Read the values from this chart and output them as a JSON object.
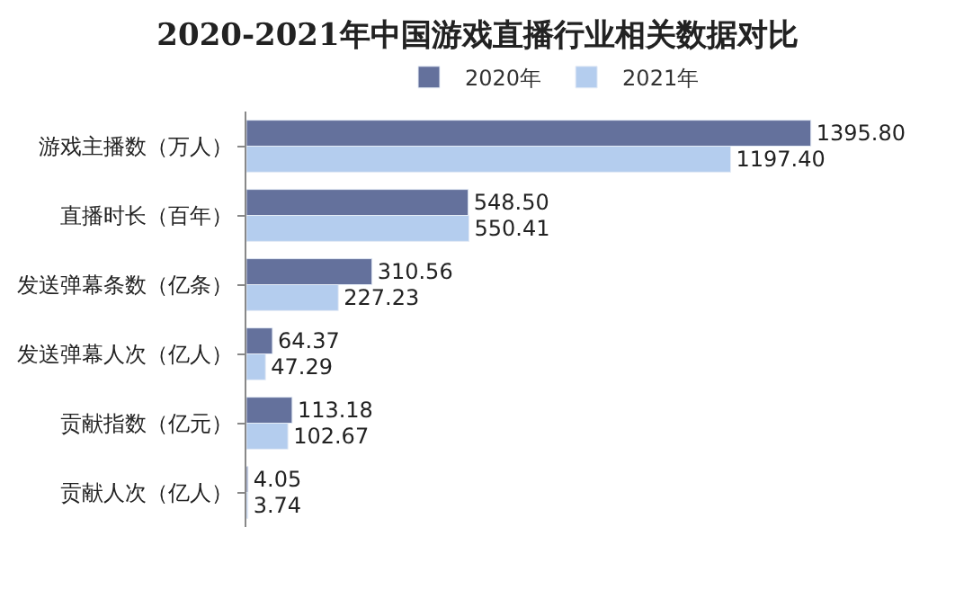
{
  "chart_data": {
    "type": "bar",
    "orientation": "horizontal",
    "title": "2020-2021年中国游戏直播行业相关数据对比",
    "categories": [
      "游戏主播数（万人）",
      "直播时长（百年）",
      "发送弹幕条数（亿条）",
      "发送弹幕人次（亿人）",
      "贡献指数（亿元）",
      "贡献人次（亿人）"
    ],
    "series": [
      {
        "name": "2020年",
        "color": "#64719c",
        "values": [
          1395.8,
          548.5,
          310.56,
          64.37,
          113.18,
          4.05
        ],
        "value_labels": [
          "1395.80",
          "548.50",
          "310.56",
          "64.37",
          "113.18",
          "4.05"
        ]
      },
      {
        "name": "2021年",
        "color": "#b4cdee",
        "values": [
          1197.4,
          550.41,
          227.23,
          47.29,
          102.67,
          3.74
        ],
        "value_labels": [
          "1197.40",
          "550.41",
          "227.23",
          "47.29",
          "102.67",
          "3.74"
        ]
      }
    ],
    "legend": "top"
  }
}
